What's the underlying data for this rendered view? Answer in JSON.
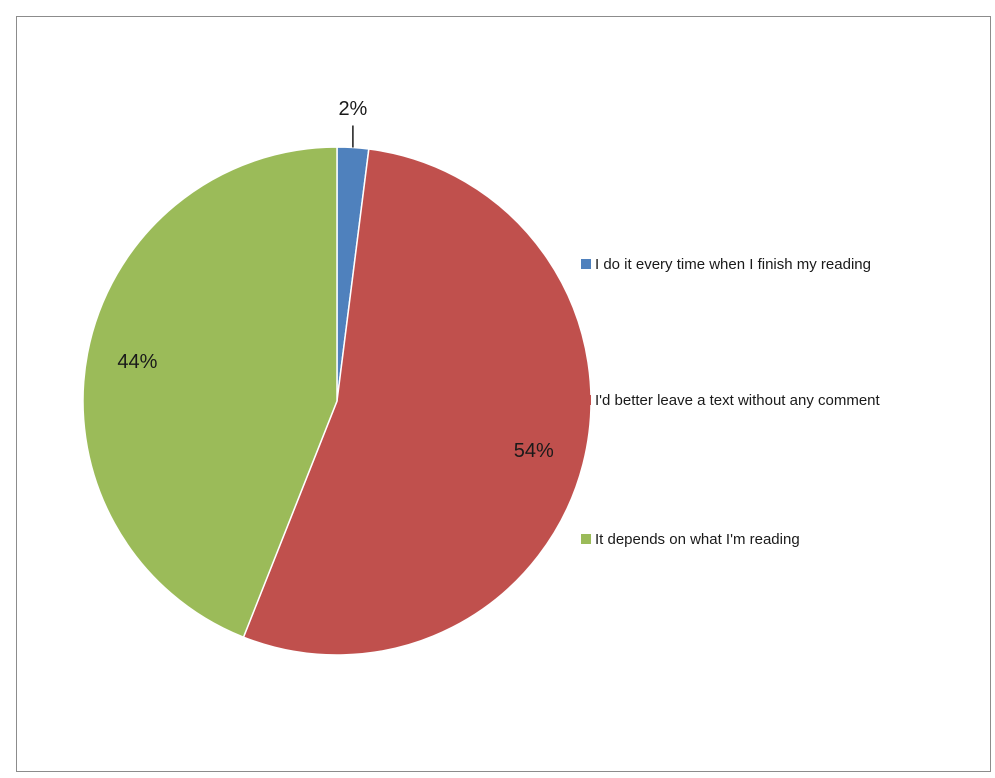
{
  "chart_data": {
    "type": "pie",
    "title": "",
    "slices": [
      {
        "label": "I do it every time when I finish my reading",
        "value": 2,
        "display": "2%",
        "color": "#4F81BD"
      },
      {
        "label": "I'd better leave a text without any comment",
        "value": 54,
        "display": "54%",
        "color": "#C0504D"
      },
      {
        "label": "It depends on what I'm reading",
        "value": 44,
        "display": "44%",
        "color": "#9BBB59"
      }
    ],
    "start_angle": "12 o'clock",
    "direction": "clockwise",
    "legend_position": "right"
  }
}
